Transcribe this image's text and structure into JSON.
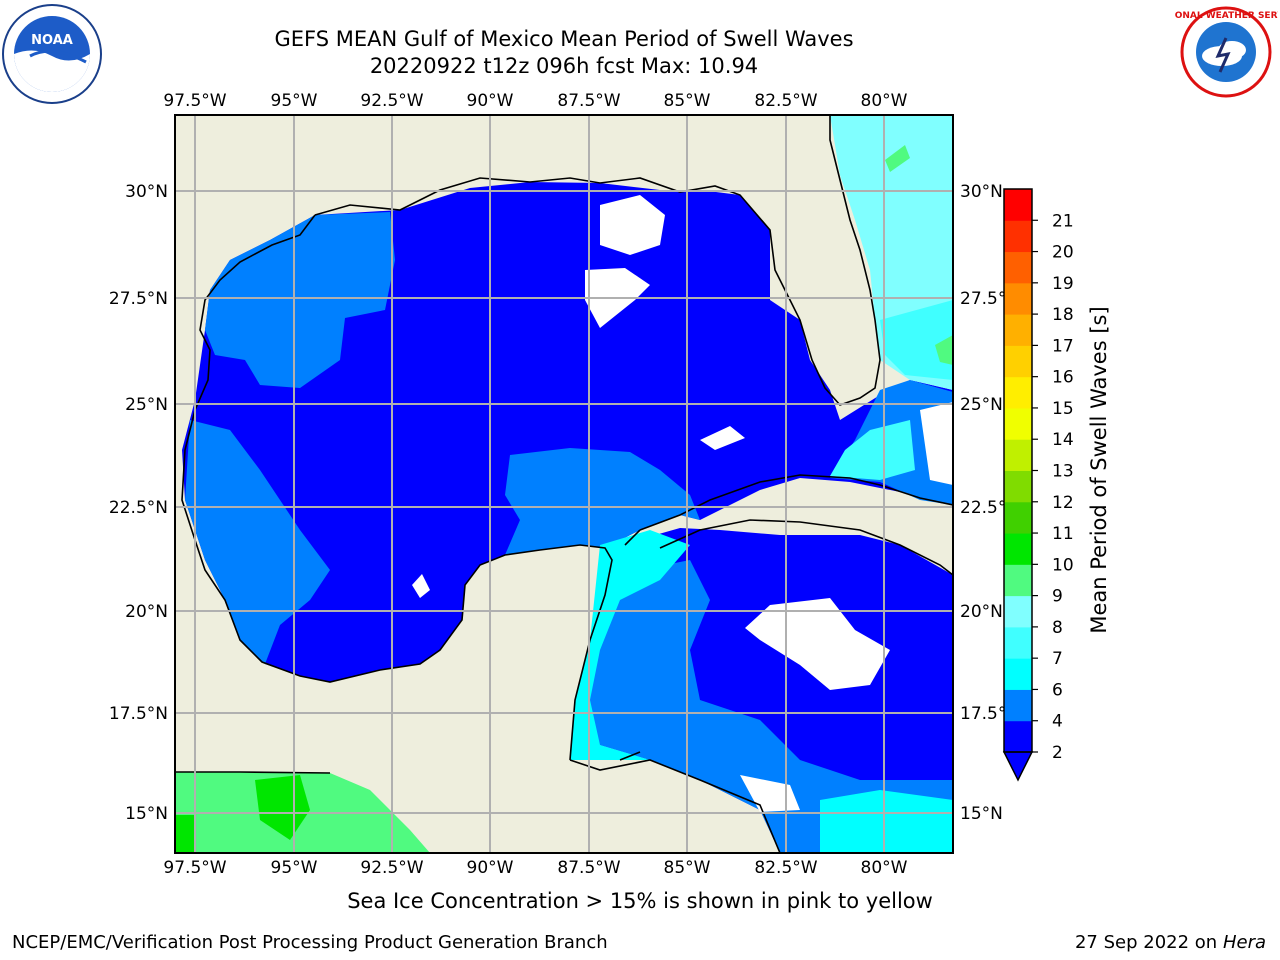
{
  "title": {
    "line1": "GEFS MEAN Gulf of Mexico Mean Period of Swell Waves",
    "line2": "20220922 t12z 096h fcst   Max: 10.94"
  },
  "map": {
    "lon_ticks": [
      "97.5°W",
      "95°W",
      "92.5°W",
      "90°W",
      "87.5°W",
      "85°W",
      "82.5°W",
      "80°W"
    ],
    "lat_ticks": [
      "30°N",
      "27.5°N",
      "25°N",
      "22.5°N",
      "20°N",
      "17.5°N",
      "15°N"
    ],
    "colors": {
      "land": "#eeeedd",
      "coast": "#000000",
      "grid": "#b0b0b0"
    }
  },
  "colorbar": {
    "label": "Mean Period of Swell Waves [s]",
    "ticks": [
      "2",
      "4",
      "6",
      "7",
      "8",
      "9",
      "10",
      "11",
      "12",
      "13",
      "14",
      "15",
      "16",
      "17",
      "18",
      "19",
      "20",
      "21"
    ],
    "colors": [
      "#0000ff",
      "#0080ff",
      "#00ffff",
      "#40ffff",
      "#80ffff",
      "#50fa80",
      "#00e600",
      "#40d000",
      "#80dc00",
      "#c0f000",
      "#f0ff00",
      "#ffee00",
      "#ffd000",
      "#ffb000",
      "#ff8c00",
      "#ff6000",
      "#ff3000",
      "#ff0000"
    ]
  },
  "footer": {
    "note": "Sea Ice Concentration > 15% is shown in pink to yellow",
    "credit_left": "NCEP/EMC/Verification Post Processing Product Generation Branch",
    "credit_date": "27 Sep 2022 on",
    "credit_host": "Hera"
  },
  "logos": {
    "noaa_text": "NOAA",
    "nws_text": "NATIONAL WEATHER SERVICE"
  }
}
